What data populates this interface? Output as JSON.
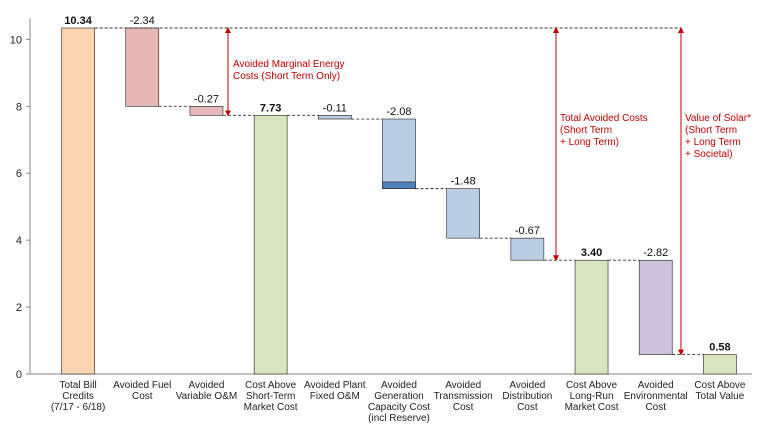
{
  "chart_data": {
    "type": "bar",
    "subtype": "waterfall",
    "title": "",
    "xlabel": "",
    "ylabel": "",
    "ylim": [
      0,
      10.5
    ],
    "yticks": [
      0,
      2,
      4,
      6,
      8,
      10
    ],
    "grid": false,
    "legend": "none",
    "categories": [
      [
        "Total Bill",
        "Credits",
        "(7/17 - 6/18)"
      ],
      [
        "Avoided Fuel",
        "Cost"
      ],
      [
        "Avoided",
        "Variable O&M"
      ],
      [
        "Cost Above",
        "Short-Term",
        "Market Cost"
      ],
      [
        "Avoided Plant",
        "Fixed O&M"
      ],
      [
        "Avoided",
        "Generation",
        "Capacity Cost",
        "(incl Reserve)"
      ],
      [
        "Avoided",
        "Transmission",
        "Cost"
      ],
      [
        "Avoided",
        "Distribution",
        "Cost"
      ],
      [
        "Cost Above",
        "Long-Run",
        "Market Cost"
      ],
      [
        "Avoided",
        "Environmental",
        "Cost"
      ],
      [
        "Cost Above",
        "Total Value"
      ]
    ],
    "bars": [
      {
        "label": "10.34",
        "bold": true,
        "bottom": 0,
        "top": 10.34,
        "color": "#fad3b1"
      },
      {
        "label": "-2.34",
        "bold": false,
        "bottom": 8.0,
        "top": 10.34,
        "color": "#e6b9b8"
      },
      {
        "label": "-0.27",
        "bold": false,
        "bottom": 7.73,
        "top": 8.0,
        "color": "#e6b9b8"
      },
      {
        "label": "7.73",
        "bold": true,
        "bottom": 0,
        "top": 7.73,
        "color": "#d7e4bd"
      },
      {
        "label": "-0.11",
        "bold": false,
        "bottom": 7.62,
        "top": 7.73,
        "color": "#b9cde5"
      },
      {
        "label": "-2.08",
        "bold": false,
        "bottom": 5.54,
        "top": 7.62,
        "color": "#b9cde5",
        "segment": {
          "bottom": 5.54,
          "top": 5.74,
          "color": "#4f81bd"
        }
      },
      {
        "label": "-1.48",
        "bold": false,
        "bottom": 4.06,
        "top": 5.54,
        "color": "#b9cde5"
      },
      {
        "label": "-0.67",
        "bold": false,
        "bottom": 3.4,
        "top": 4.06,
        "color": "#b9cde5"
      },
      {
        "label": "3.40",
        "bold": true,
        "bottom": 0,
        "top": 3.4,
        "color": "#d7e4bd"
      },
      {
        "label": "-2.82",
        "bold": false,
        "bottom": 0.58,
        "top": 3.4,
        "color": "#ccc0da"
      },
      {
        "label": "0.58",
        "bold": true,
        "bottom": 0,
        "top": 0.58,
        "color": "#d7e4bd"
      }
    ],
    "annotations": [
      {
        "id": "avoided-marginal-energy",
        "lines": [
          "Avoided Marginal Energy",
          "Costs (Short Term Only)"
        ],
        "from": 10.34,
        "to": 7.73,
        "color": "#c00000"
      },
      {
        "id": "total-avoided-costs",
        "lines": [
          "Total Avoided Costs",
          "(Short Term",
          "+ Long Term)"
        ],
        "from": 10.34,
        "to": 3.4,
        "color": "#c00000"
      },
      {
        "id": "value-of-solar",
        "lines": [
          "Value of Solar*",
          "(Short Term",
          "+ Long Term",
          "+ Societal)"
        ],
        "from": 10.34,
        "to": 0.58,
        "color": "#c00000"
      }
    ]
  }
}
